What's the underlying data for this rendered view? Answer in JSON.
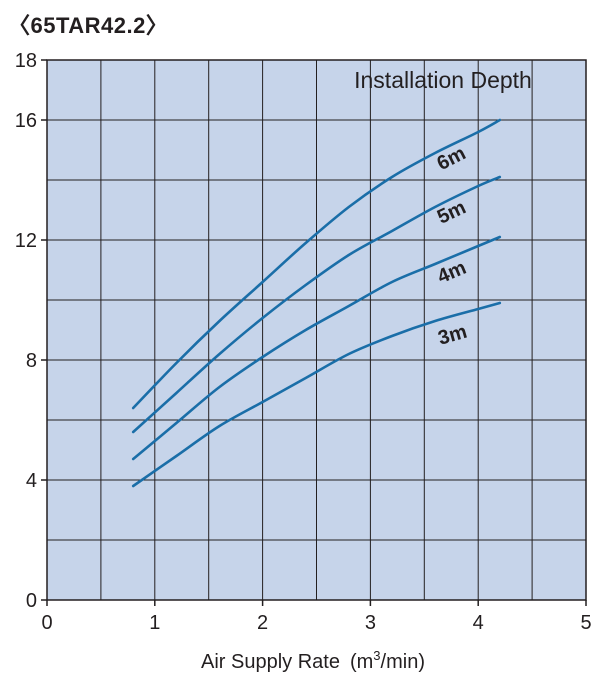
{
  "chart_data": {
    "type": "line",
    "title": "〈65TAR42.2〉",
    "xlabel": "Air Supply Rate",
    "xlabel_unit_prefix": "(m",
    "xlabel_unit_sup": "3",
    "xlabel_unit_suffix": "/min)",
    "ylabel": "",
    "xlim": [
      0,
      5
    ],
    "ylim": [
      0,
      18
    ],
    "xticks": [
      "0",
      "1",
      "2",
      "3",
      "4",
      "5"
    ],
    "yticks": [
      "0",
      "4",
      "8",
      "12",
      "16",
      "18"
    ],
    "grid": true,
    "legend_title": "Installation Depth",
    "line_color": "#1a6ea8",
    "plot_bg": "#c6d4ea",
    "grid_color": "#231f20",
    "series": [
      {
        "name": "3m",
        "x": [
          0.8,
          1.2,
          1.6,
          2.0,
          2.4,
          2.8,
          3.2,
          3.6,
          4.0,
          4.2
        ],
        "values": [
          3.8,
          4.8,
          5.8,
          6.6,
          7.4,
          8.2,
          8.8,
          9.3,
          9.7,
          9.9
        ]
      },
      {
        "name": "4m",
        "x": [
          0.8,
          1.2,
          1.6,
          2.0,
          2.4,
          2.8,
          3.2,
          3.6,
          4.0,
          4.2
        ],
        "values": [
          4.7,
          5.9,
          7.1,
          8.1,
          9.0,
          9.8,
          10.6,
          11.2,
          11.8,
          12.1
        ]
      },
      {
        "name": "5m",
        "x": [
          0.8,
          1.2,
          1.6,
          2.0,
          2.4,
          2.8,
          3.2,
          3.6,
          4.0,
          4.2
        ],
        "values": [
          5.6,
          6.9,
          8.2,
          9.4,
          10.5,
          11.5,
          12.3,
          13.1,
          13.8,
          14.1
        ]
      },
      {
        "name": "6m",
        "x": [
          0.8,
          1.2,
          1.6,
          2.0,
          2.4,
          2.8,
          3.2,
          3.6,
          4.0,
          4.2
        ],
        "values": [
          6.4,
          7.9,
          9.3,
          10.6,
          11.9,
          13.1,
          14.1,
          14.9,
          15.6,
          16.0
        ]
      }
    ]
  }
}
